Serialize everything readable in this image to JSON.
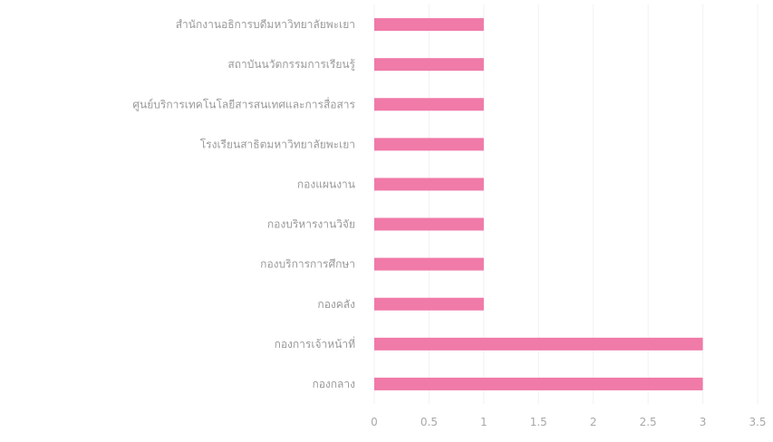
{
  "chart_data": {
    "type": "bar",
    "orientation": "horizontal",
    "categories": [
      "สำนักงานอธิการบดีมหาวิทยาลัยพะเยา",
      "สถาบันนวัตกรรมการเรียนรู้",
      "ศูนย์บริการเทคโนโลยีสารสนเทศและการสื่อสาร",
      "โรงเรียนสาธิตมหาวิทยาลัยพะเยา",
      "กองแผนงาน",
      "กองบริหารงานวิจัย",
      "กองบริการการศึกษา",
      "กองคลัง",
      "กองการเจ้าหน้าที่",
      "กองกลาง"
    ],
    "values": [
      1,
      1,
      1,
      1,
      1,
      1,
      1,
      1,
      3,
      3
    ],
    "xlim": [
      0,
      3.5
    ],
    "xticks": [
      "0",
      "0.5",
      "1",
      "1.5",
      "2",
      "2.5",
      "3",
      "3.5"
    ],
    "grid": true,
    "color": "#f07aa8"
  }
}
